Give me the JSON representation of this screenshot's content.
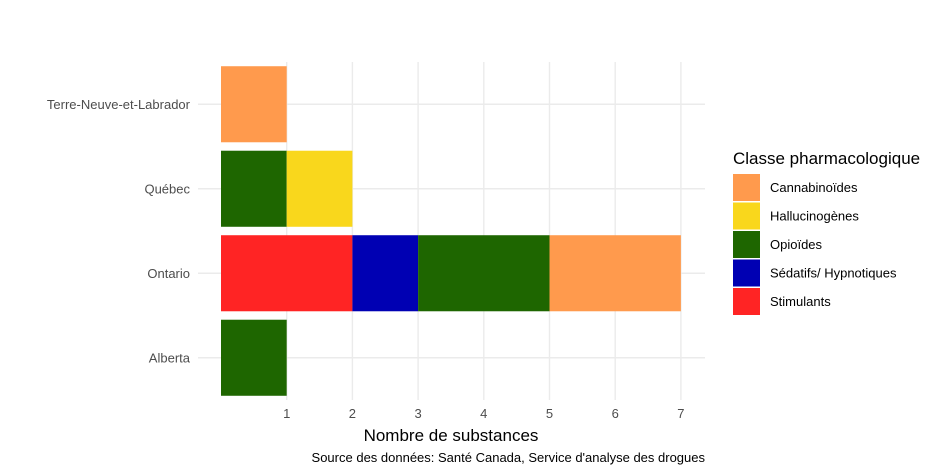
{
  "chart_data": {
    "type": "bar",
    "orientation": "horizontal",
    "stacked": true,
    "categories": [
      "Terre-Neuve-et-Labrador",
      "Québec",
      "Ontario",
      "Alberta"
    ],
    "series": [
      {
        "name": "Stimulants",
        "color": "#ff2424",
        "values": [
          0,
          0,
          2,
          0
        ]
      },
      {
        "name": "Sédatifs/ Hypnotiques",
        "color": "#0000b3",
        "values": [
          0,
          0,
          1,
          0
        ]
      },
      {
        "name": "Opioïdes",
        "color": "#1e6600",
        "values": [
          0,
          1,
          2,
          1
        ]
      },
      {
        "name": "Hallucinogènes",
        "color": "#f9d71c",
        "values": [
          0,
          1,
          0,
          0
        ]
      },
      {
        "name": "Cannabinoïdes",
        "color": "#ff9a4d",
        "values": [
          1,
          0,
          2,
          0
        ]
      }
    ],
    "legend_order": [
      "Cannabinoïdes",
      "Hallucinogènes",
      "Opioïdes",
      "Sédatifs/ Hypnotiques",
      "Stimulants"
    ],
    "xlabel": "Nombre de substances",
    "ylabel": "",
    "xlim": [
      0,
      7
    ],
    "xticks": [
      1,
      2,
      3,
      4,
      5,
      6,
      7
    ],
    "legend_title": "Classe pharmacologique",
    "legend_position": "right",
    "grid": true,
    "caption": "Source des données: Santé Canada, Service d'analyse des drogues"
  }
}
